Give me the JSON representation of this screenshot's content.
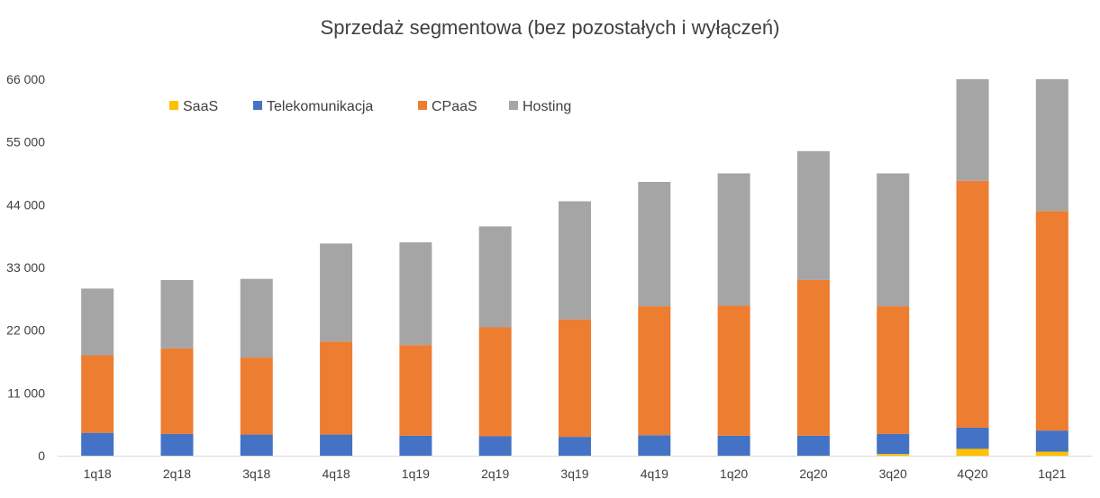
{
  "chart_data": {
    "type": "bar",
    "stacked": true,
    "title": "Sprzedaż segmentowa (bez pozostałych i wyłączeń)",
    "categories": [
      "1q18",
      "2q18",
      "3q18",
      "4q18",
      "1q19",
      "2q19",
      "3q19",
      "4q19",
      "1q20",
      "2q20",
      "3q20",
      "4Q20",
      "1q21"
    ],
    "ylim": [
      0,
      66000
    ],
    "yticks": [
      0,
      11000,
      22000,
      33000,
      44000,
      55000,
      66000
    ],
    "ytick_labels": [
      "0",
      "11 000",
      "22 000",
      "33 000",
      "44 000",
      "55 000",
      "66 000"
    ],
    "grid": false,
    "legend_position": "top-left",
    "series": [
      {
        "name": "SaaS",
        "color": "#FFC000",
        "values": [
          0,
          0,
          0,
          0,
          0,
          0,
          0,
          0,
          0,
          0,
          300,
          1200,
          700
        ]
      },
      {
        "name": "Telekomunikacja",
        "color": "#4472C4",
        "values": [
          4000,
          3800,
          3700,
          3700,
          3500,
          3400,
          3300,
          3600,
          3500,
          3500,
          3500,
          3700,
          3700
        ]
      },
      {
        "name": "CPaaS",
        "color": "#ED7D31",
        "values": [
          13600,
          15000,
          13500,
          16300,
          15900,
          19100,
          20600,
          22600,
          22800,
          27300,
          22400,
          43300,
          38500
        ]
      },
      {
        "name": "Hosting",
        "color": "#A5A5A5",
        "values": [
          11700,
          12000,
          13800,
          17200,
          18000,
          17700,
          20700,
          21800,
          23200,
          22600,
          23300,
          17800,
          23100
        ]
      }
    ]
  }
}
